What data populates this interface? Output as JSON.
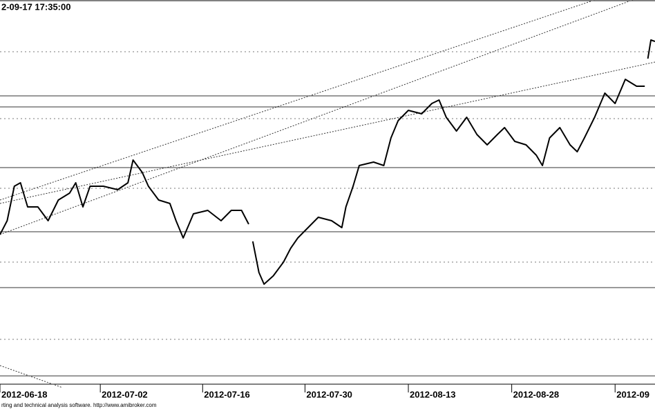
{
  "chart_data": {
    "type": "line",
    "title": "2-09-17 17:35:00",
    "caption": "rting and technical analysis software. http://www.amibroker.com",
    "xlim": [
      0,
      64
    ],
    "ylim": [
      0,
      557
    ],
    "xticks": [
      {
        "value": 0,
        "label": "2012-06-18"
      },
      {
        "value": 9.8,
        "label": "2012-07-02"
      },
      {
        "value": 19.8,
        "label": "2012-07-16"
      },
      {
        "value": 29.8,
        "label": "2012-07-30"
      },
      {
        "value": 39.9,
        "label": "2012-08-13"
      },
      {
        "value": 50.0,
        "label": "2012-08-28"
      },
      {
        "value": 60.1,
        "label": "2012-09"
      }
    ],
    "grid_levels": [
      482,
      385,
      284,
      177,
      65
    ],
    "levels": [
      418,
      402,
      314,
      221,
      140,
      12
    ],
    "trendlines": [
      [
        0,
        217,
        61.8,
        557
      ],
      [
        0,
        267,
        58.1,
        557
      ],
      [
        0,
        262,
        64,
        467
      ],
      [
        0,
        27,
        6.1,
        -5
      ]
    ],
    "series": [
      {
        "color": "#000000",
        "x": [
          0,
          0.7,
          1.4,
          2.0,
          2.7,
          3.7,
          4.7,
          5.7,
          6.8,
          7.4,
          8.1,
          8.8,
          10.1,
          11.5,
          12.5,
          13.0,
          13.9,
          14.5,
          15.5,
          16.6,
          17.2,
          17.9,
          18.9,
          20.3,
          21.6,
          22.6,
          23.6,
          24.3,
          24.5,
          24.7,
          25.3,
          25.8,
          26.7,
          27.7,
          28.4,
          29.1,
          30.1,
          31.1,
          32.4,
          33.4,
          33.8,
          34.5,
          35.1,
          36.5,
          37.5,
          38.2,
          38.9,
          39.9,
          41.2,
          42.2,
          42.9,
          43.6,
          44.6,
          45.6,
          46.6,
          47.6,
          48.6,
          49.3,
          50.3,
          51.4,
          52.4,
          53.0,
          53.7,
          54.7,
          55.7,
          56.4,
          57.1,
          58.1,
          59.1,
          60.1,
          61.1,
          62.2,
          63.0,
          63.1,
          63.3,
          63.6,
          64.0
        ],
        "values": [
          217,
          237,
          287,
          292,
          257,
          257,
          237,
          267,
          277,
          292,
          257,
          287,
          287,
          282,
          292,
          325,
          307,
          287,
          267,
          262,
          237,
          212,
          247,
          252,
          237,
          252,
          252,
          232,
          null,
          207,
          162,
          145,
          157,
          177,
          197,
          212,
          227,
          242,
          237,
          227,
          257,
          287,
          317,
          322,
          317,
          357,
          382,
          397,
          392,
          407,
          412,
          387,
          367,
          387,
          362,
          347,
          362,
          372,
          352,
          347,
          332,
          317,
          357,
          372,
          347,
          337,
          357,
          387,
          422,
          407,
          442,
          432,
          432,
          null,
          472,
          499,
          497
        ]
      }
    ]
  }
}
